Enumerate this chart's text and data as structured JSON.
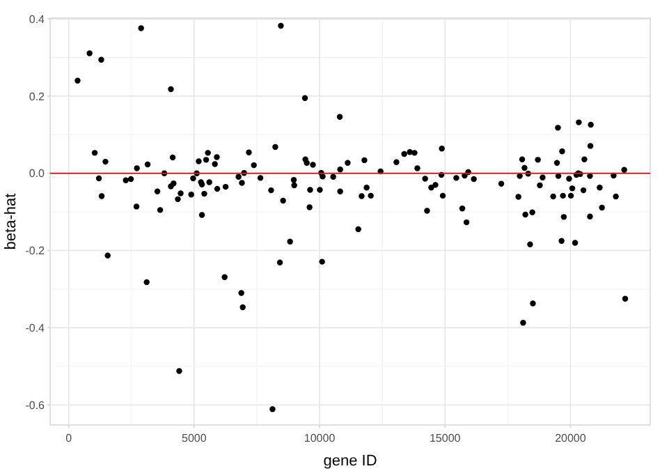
{
  "chart_data": {
    "type": "scatter",
    "xlabel": "gene ID",
    "ylabel": "beta-hat",
    "xlim": [
      -740,
      23180
    ],
    "ylim": [
      -0.652,
      0.402
    ],
    "xticks": [
      0,
      5000,
      10000,
      15000,
      20000
    ],
    "yticks": [
      -0.6,
      -0.4,
      -0.2,
      {
        "value": 0,
        "label": "0.0"
      },
      0.2,
      0.4
    ],
    "grid": true,
    "marker": "circle",
    "ref_lines": [
      {
        "axis": "y",
        "value": 0,
        "color": "#e31a1c"
      }
    ],
    "series": [
      {
        "color": "#000000",
        "x": [
          355,
          832,
          1298,
          2886,
          4073,
          1038,
          1465,
          1204,
          1315,
          1554,
          2275,
          2481,
          2719,
          2702,
          3146,
          3108,
          3535,
          3646,
          3812,
          4145,
          4073,
          4180,
          4351,
          4462,
          4406,
          4884,
          4961,
          5106,
          5183,
          5272,
          5311,
          5311,
          5405,
          5477,
          5549,
          5605,
          5827,
          5904,
          5921,
          6215,
          6254,
          6770,
          6903,
          6992,
          6881,
          6937,
          7181,
          7381,
          7642,
          8069,
          8235,
          8457,
          8546,
          8418,
          8823,
          8124,
          8973,
          8990,
          9417,
          9434,
          9490,
          9600,
          9623,
          9734,
          10011,
          10067,
          10122,
          10100,
          10544,
          10805,
          10821,
          10821,
          11121,
          11543,
          11676,
          11787,
          11876,
          12042,
          12431,
          13063,
          13374,
          13596,
          13785,
          13896,
          14207,
          14284,
          14451,
          14617,
          14856,
          14873,
          14911,
          15449,
          15688,
          15782,
          15927,
          15855,
          16149,
          17242,
          17925,
          17980,
          18074,
          18168,
          18113,
          18202,
          18313,
          18390,
          18479,
          18502,
          18701,
          18779,
          18890,
          19312,
          19462,
          19501,
          19517,
          19667,
          19700,
          19645,
          19734,
          19945,
          20017,
          20072,
          20183,
          20239,
          20311,
          20389,
          20333,
          20516,
          20555,
          20777,
          20777,
          20794,
          20810,
          21165,
          21254,
          21720,
          21809,
          22142,
          22181
        ],
        "values": [
          0.24,
          0.311,
          0.294,
          0.376,
          0.218,
          0.053,
          0.03,
          -0.013,
          -0.059,
          -0.213,
          -0.018,
          -0.015,
          0.013,
          -0.086,
          0.023,
          -0.282,
          -0.047,
          -0.095,
          0.0,
          0.041,
          -0.034,
          -0.026,
          -0.067,
          -0.052,
          -0.512,
          -0.055,
          -0.013,
          0.0,
          0.031,
          -0.023,
          -0.029,
          -0.108,
          -0.053,
          0.035,
          0.053,
          -0.023,
          0.024,
          0.042,
          -0.04,
          -0.269,
          -0.035,
          -0.009,
          -0.025,
          0.001,
          -0.31,
          -0.347,
          0.054,
          0.021,
          -0.012,
          -0.044,
          0.068,
          0.382,
          -0.071,
          -0.231,
          -0.177,
          -0.611,
          -0.017,
          -0.031,
          0.195,
          0.036,
          0.027,
          -0.088,
          -0.043,
          0.022,
          -0.043,
          0.001,
          -0.008,
          -0.229,
          -0.009,
          0.146,
          0.01,
          -0.047,
          0.027,
          -0.145,
          -0.059,
          0.034,
          -0.037,
          -0.058,
          0.005,
          0.029,
          0.05,
          0.055,
          0.053,
          0.013,
          -0.014,
          -0.097,
          -0.037,
          -0.03,
          -0.004,
          0.064,
          -0.058,
          -0.012,
          -0.091,
          -0.006,
          0.003,
          -0.127,
          -0.015,
          -0.027,
          -0.061,
          -0.007,
          0.036,
          0.014,
          -0.387,
          -0.107,
          -0.001,
          -0.184,
          -0.101,
          -0.337,
          0.035,
          -0.031,
          -0.011,
          -0.06,
          0.027,
          0.118,
          -0.007,
          0.057,
          -0.058,
          -0.175,
          -0.113,
          -0.014,
          -0.058,
          -0.039,
          -0.18,
          -0.004,
          0.0,
          -0.002,
          0.132,
          -0.044,
          0.036,
          -0.007,
          -0.112,
          0.071,
          0.126,
          -0.037,
          -0.089,
          -0.006,
          -0.06,
          0.009,
          -0.325
        ]
      }
    ]
  }
}
